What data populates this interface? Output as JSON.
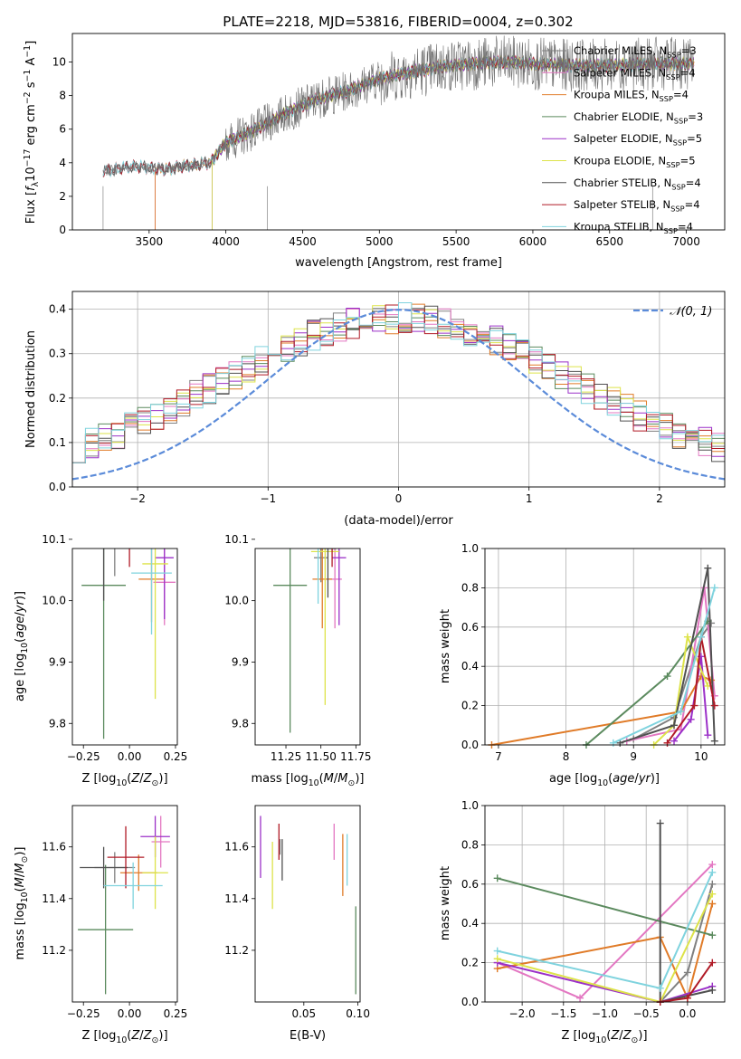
{
  "figure": {
    "title": "PLATE=2218, MJD=53816, FIBERID=0004, z=0.302"
  },
  "model_colors": {
    "Chabrier MILES": "#808080",
    "Salpeter MILES": "#e377c2",
    "Kroupa MILES": "#e07b28",
    "Chabrier ELODIE": "#5b8a5e",
    "Salpeter ELODIE": "#9b30c8",
    "Kroupa ELODIE": "#dde34a",
    "Chabrier STELIB": "#505050",
    "Salpeter STELIB": "#b01a26",
    "Kroupa STELIB": "#7fd3de"
  },
  "chart_data": [
    {
      "id": "spectrum",
      "type": "line",
      "title": "PLATE=2218, MJD=53816, FIBERID=0004, z=0.302",
      "xlabel": "wavelength [Angstrom, rest frame]",
      "ylabel": "Flux [f_λ 10^-17 erg cm^-2 s^-1 A^-1]",
      "xlim": [
        3000,
        7250
      ],
      "ylim": [
        0,
        11.7
      ],
      "xticks": [
        3500,
        4000,
        4500,
        5000,
        5500,
        6000,
        6500,
        7000
      ],
      "yticks": [
        0,
        2,
        4,
        6,
        8,
        10
      ],
      "grid": false,
      "legend_position": "right",
      "data_range": [
        3200,
        7050
      ],
      "continuum_knots": [
        [
          3200,
          3.5
        ],
        [
          3400,
          3.8
        ],
        [
          3600,
          3.6
        ],
        [
          3800,
          3.9
        ],
        [
          3900,
          4.0
        ],
        [
          4000,
          5.2
        ],
        [
          4200,
          6.0
        ],
        [
          4400,
          7.0
        ],
        [
          4600,
          7.8
        ],
        [
          4800,
          8.3
        ],
        [
          5000,
          9.0
        ],
        [
          5200,
          9.4
        ],
        [
          5400,
          9.7
        ],
        [
          5600,
          9.9
        ],
        [
          5800,
          10.0
        ],
        [
          6000,
          9.9
        ],
        [
          6200,
          9.8
        ],
        [
          6500,
          9.8
        ],
        [
          6800,
          9.9
        ],
        [
          7050,
          9.9
        ]
      ],
      "series": [
        {
          "name": "Chabrier MILES, N_SSP=3",
          "start": 3540
        },
        {
          "name": "Salpeter MILES, N_SSP=4",
          "start": 3540
        },
        {
          "name": "Kroupa MILES, N_SSP=4",
          "start": 3540
        },
        {
          "name": "Chabrier ELODIE, N_SSP=3",
          "start": 3910
        },
        {
          "name": "Salpeter ELODIE, N_SSP=5",
          "start": 3910
        },
        {
          "name": "Kroupa ELODIE, N_SSP=5",
          "start": 3910
        },
        {
          "name": "Chabrier STELIB, N_SSP=4",
          "start": 3200
        },
        {
          "name": "Salpeter STELIB, N_SSP=4",
          "start": 3200
        },
        {
          "name": "Kroupa STELIB, N_SSP=4",
          "start": 3200
        }
      ]
    },
    {
      "id": "residuals",
      "type": "line",
      "xlabel": "(data-model)/error",
      "ylabel": "Normed distribution",
      "xlim": [
        -2.5,
        2.5
      ],
      "ylim": [
        0,
        0.44
      ],
      "xticks": [
        -2,
        -1,
        0,
        1,
        2
      ],
      "yticks": [
        0.0,
        0.1,
        0.2,
        0.3,
        0.4
      ],
      "grid": true,
      "legend_position": "top-right",
      "reference_label": "𝒩(0, 1)",
      "bin_width": 0.1
    },
    {
      "id": "age_vs_Z",
      "type": "scatter",
      "xlabel": "Z [log10(Z/Z⊙)]",
      "ylabel": "age  [log10(age/yr)]",
      "xlim": [
        -0.31,
        0.26
      ],
      "ylim": [
        9.765,
        10.085
      ],
      "xticks": [
        -0.25,
        0.0,
        0.25
      ],
      "yticks": [
        9.8,
        9.9,
        10.0,
        10.1
      ],
      "points": [
        {
          "model": "Chabrier MILES",
          "x": -0.08,
          "y": 10.09,
          "xerr": 0.11,
          "yerr": 0.05
        },
        {
          "model": "Salpeter MILES",
          "x": 0.19,
          "y": 10.03,
          "xerr": 0.06,
          "yerr": 0.07
        },
        {
          "model": "Kroupa MILES",
          "x": 0.12,
          "y": 10.035,
          "xerr": 0.07,
          "yerr": 0.07
        },
        {
          "model": "Chabrier ELODIE",
          "x": -0.14,
          "y": 10.025,
          "xerr": 0.12,
          "yerr": 0.25
        },
        {
          "model": "Salpeter ELODIE",
          "x": 0.19,
          "y": 10.07,
          "xerr": 0.05,
          "yerr": 0.1
        },
        {
          "model": "Kroupa ELODIE",
          "x": 0.14,
          "y": 10.06,
          "xerr": 0.07,
          "yerr": 0.22
        },
        {
          "model": "Chabrier STELIB",
          "x": -0.14,
          "y": 10.09,
          "xerr": 0.11,
          "yerr": 0.09
        },
        {
          "model": "Salpeter STELIB",
          "x": 0.0,
          "y": 10.095,
          "xerr": 0.12,
          "yerr": 0.04
        },
        {
          "model": "Kroupa STELIB",
          "x": 0.12,
          "y": 10.045,
          "xerr": 0.11,
          "yerr": 0.1
        }
      ]
    },
    {
      "id": "age_vs_mass",
      "type": "scatter",
      "xlabel": "mass [log10(M/M⊙)]",
      "ylabel": "",
      "xlim": [
        11.03,
        11.78
      ],
      "ylim": [
        9.765,
        10.085
      ],
      "xticks": [
        11.25,
        11.5,
        11.75
      ],
      "yticks": [
        9.8,
        9.9,
        10.0,
        10.1
      ],
      "points": [
        {
          "model": "Chabrier MILES",
          "x": 11.5,
          "y": 10.07,
          "xerr": 0.05,
          "yerr": 0.04
        },
        {
          "model": "Salpeter MILES",
          "x": 11.6,
          "y": 10.035,
          "xerr": 0.05,
          "yerr": 0.08
        },
        {
          "model": "Kroupa MILES",
          "x": 11.51,
          "y": 10.035,
          "xerr": 0.07,
          "yerr": 0.08
        },
        {
          "model": "Chabrier ELODIE",
          "x": 11.28,
          "y": 10.025,
          "xerr": 0.12,
          "yerr": 0.24
        },
        {
          "model": "Salpeter ELODIE",
          "x": 11.63,
          "y": 10.07,
          "xerr": 0.05,
          "yerr": 0.11
        },
        {
          "model": "Kroupa ELODIE",
          "x": 11.53,
          "y": 10.08,
          "xerr": 0.1,
          "yerr": 0.25
        },
        {
          "model": "Chabrier STELIB",
          "x": 11.55,
          "y": 10.085,
          "xerr": 0.06,
          "yerr": 0.08
        },
        {
          "model": "Salpeter STELIB",
          "x": 11.58,
          "y": 10.095,
          "xerr": 0.1,
          "yerr": 0.04
        },
        {
          "model": "Kroupa STELIB",
          "x": 11.48,
          "y": 10.095,
          "xerr": 0.05,
          "yerr": 0.1
        }
      ]
    },
    {
      "id": "mass_weight_vs_age",
      "type": "line",
      "xlabel": "age  [log10(age/yr)]",
      "ylabel": "mass weight",
      "xlim": [
        6.8,
        10.35
      ],
      "ylim": [
        0,
        1.0
      ],
      "xticks": [
        7,
        8,
        9,
        10
      ],
      "yticks": [
        0.0,
        0.2,
        0.4,
        0.6,
        0.8,
        1.0
      ],
      "grid": true,
      "series": [
        {
          "model": "Chabrier MILES",
          "points": [
            [
              9.0,
              0.03
            ],
            [
              9.6,
              0.14
            ],
            [
              10.0,
              0.55
            ],
            [
              10.15,
              0.62
            ]
          ]
        },
        {
          "model": "Salpeter MILES",
          "points": [
            [
              8.9,
              0.02
            ],
            [
              9.7,
              0.08
            ],
            [
              10.05,
              0.8
            ],
            [
              10.2,
              0.25
            ]
          ]
        },
        {
          "model": "Kroupa MILES",
          "points": [
            [
              6.9,
              0.0
            ],
            [
              9.7,
              0.17
            ],
            [
              10.0,
              0.35
            ],
            [
              10.15,
              0.33
            ]
          ]
        },
        {
          "model": "Chabrier ELODIE",
          "points": [
            [
              8.3,
              0.0
            ],
            [
              9.5,
              0.35
            ],
            [
              10.1,
              0.63
            ]
          ]
        },
        {
          "model": "Salpeter ELODIE",
          "points": [
            [
              9.6,
              0.02
            ],
            [
              9.85,
              0.13
            ],
            [
              10.0,
              0.45
            ],
            [
              10.1,
              0.05
            ]
          ]
        },
        {
          "model": "Kroupa ELODIE",
          "points": [
            [
              9.3,
              0.0
            ],
            [
              9.6,
              0.1
            ],
            [
              9.8,
              0.55
            ],
            [
              10.1,
              0.3
            ]
          ]
        },
        {
          "model": "Chabrier STELIB",
          "points": [
            [
              8.8,
              0.01
            ],
            [
              9.6,
              0.1
            ],
            [
              10.1,
              0.9
            ],
            [
              10.2,
              0.02
            ]
          ]
        },
        {
          "model": "Salpeter STELIB",
          "points": [
            [
              9.5,
              0.01
            ],
            [
              9.9,
              0.2
            ],
            [
              10.0,
              0.55
            ],
            [
              10.2,
              0.2
            ]
          ]
        },
        {
          "model": "Kroupa STELIB",
          "points": [
            [
              8.7,
              0.01
            ],
            [
              9.7,
              0.17
            ],
            [
              10.0,
              0.55
            ],
            [
              10.2,
              0.8
            ]
          ]
        }
      ]
    },
    {
      "id": "mass_vs_Z",
      "type": "scatter",
      "xlabel": "Z [log10(Z/Z⊙)]",
      "ylabel": "mass [log10(M/M⊙)]",
      "xlim": [
        -0.31,
        0.26
      ],
      "ylim": [
        11.0,
        11.76
      ],
      "xticks": [
        -0.25,
        0.0,
        0.25
      ],
      "yticks": [
        11.2,
        11.4,
        11.6
      ],
      "points": [
        {
          "model": "Chabrier MILES",
          "x": -0.08,
          "y": 11.52,
          "xerr": 0.11,
          "yerr": 0.06
        },
        {
          "model": "Salpeter MILES",
          "x": 0.17,
          "y": 11.62,
          "xerr": 0.05,
          "yerr": 0.1
        },
        {
          "model": "Kroupa MILES",
          "x": 0.05,
          "y": 11.5,
          "xerr": 0.1,
          "yerr": 0.07
        },
        {
          "model": "Chabrier ELODIE",
          "x": -0.13,
          "y": 11.28,
          "xerr": 0.15,
          "yerr": 0.25
        },
        {
          "model": "Salpeter ELODIE",
          "x": 0.14,
          "y": 11.64,
          "xerr": 0.08,
          "yerr": 0.08
        },
        {
          "model": "Kroupa ELODIE",
          "x": 0.14,
          "y": 11.5,
          "xerr": 0.07,
          "yerr": 0.14
        },
        {
          "model": "Chabrier STELIB",
          "x": -0.14,
          "y": 11.52,
          "xerr": 0.13,
          "yerr": 0.08
        },
        {
          "model": "Salpeter STELIB",
          "x": -0.02,
          "y": 11.56,
          "xerr": 0.1,
          "yerr": 0.12
        },
        {
          "model": "Kroupa STELIB",
          "x": 0.02,
          "y": 11.45,
          "xerr": 0.16,
          "yerr": 0.09
        }
      ]
    },
    {
      "id": "mass_vs_EBV",
      "type": "scatter",
      "xlabel": "E(B-V)",
      "ylabel": "",
      "xlim": [
        0.005,
        0.102
      ],
      "ylim": [
        11.0,
        11.76
      ],
      "xticks": [
        0.05,
        0.1
      ],
      "yticks": [
        11.2,
        11.4,
        11.6
      ],
      "points": [
        {
          "model": "Chabrier MILES",
          "x": 0.028,
          "y": 11.6,
          "yerr": 0.03
        },
        {
          "model": "Salpeter MILES",
          "x": 0.078,
          "y": 11.62,
          "yerr": 0.07
        },
        {
          "model": "Kroupa MILES",
          "x": 0.086,
          "y": 11.53,
          "yerr": 0.12
        },
        {
          "model": "Chabrier ELODIE",
          "x": 0.098,
          "y": 11.2,
          "yerr": 0.17
        },
        {
          "model": "Salpeter ELODIE",
          "x": 0.01,
          "y": 11.6,
          "yerr": 0.12
        },
        {
          "model": "Kroupa ELODIE",
          "x": 0.021,
          "y": 11.49,
          "yerr": 0.13
        },
        {
          "model": "Chabrier STELIB",
          "x": 0.03,
          "y": 11.55,
          "yerr": 0.08
        },
        {
          "model": "Salpeter STELIB",
          "x": 0.027,
          "y": 11.62,
          "yerr": 0.07
        },
        {
          "model": "Kroupa STELIB",
          "x": 0.09,
          "y": 11.55,
          "yerr": 0.1
        }
      ]
    },
    {
      "id": "mass_weight_vs_Z",
      "type": "line",
      "xlabel": "Z [log10(Z/Z⊙)]",
      "ylabel": "mass weight",
      "xlim": [
        -2.45,
        0.45
      ],
      "ylim": [
        0,
        1.0
      ],
      "xticks": [
        -2.0,
        -1.5,
        -1.0,
        -0.5,
        0.0
      ],
      "yticks": [
        0.0,
        0.2,
        0.4,
        0.6,
        0.8,
        1.0
      ],
      "grid": true,
      "series": [
        {
          "model": "Chabrier MILES",
          "points": [
            [
              -0.33,
              0.0
            ],
            [
              0.0,
              0.15
            ],
            [
              0.3,
              0.6
            ]
          ]
        },
        {
          "model": "Salpeter MILES",
          "points": [
            [
              -2.3,
              0.2
            ],
            [
              -1.3,
              0.02
            ],
            [
              0.3,
              0.7
            ]
          ]
        },
        {
          "model": "Kroupa MILES",
          "points": [
            [
              -2.3,
              0.17
            ],
            [
              -0.33,
              0.33
            ],
            [
              0.0,
              0.02
            ],
            [
              0.3,
              0.5
            ]
          ]
        },
        {
          "model": "Chabrier ELODIE",
          "points": [
            [
              -2.3,
              0.63
            ],
            [
              0.3,
              0.34
            ]
          ]
        },
        {
          "model": "Salpeter ELODIE",
          "points": [
            [
              -2.3,
              0.2
            ],
            [
              -0.33,
              0.0
            ],
            [
              0.3,
              0.08
            ]
          ]
        },
        {
          "model": "Kroupa ELODIE",
          "points": [
            [
              -2.3,
              0.22
            ],
            [
              -0.33,
              0.0
            ],
            [
              0.3,
              0.55
            ]
          ]
        },
        {
          "model": "Chabrier STELIB",
          "points": [
            [
              -0.33,
              0.91
            ],
            [
              -0.33,
              0.0
            ],
            [
              0.3,
              0.06
            ]
          ]
        },
        {
          "model": "Salpeter STELIB",
          "points": [
            [
              -0.33,
              0.0
            ],
            [
              0.0,
              0.02
            ],
            [
              0.3,
              0.2
            ]
          ]
        },
        {
          "model": "Kroupa STELIB",
          "points": [
            [
              -2.3,
              0.26
            ],
            [
              -0.33,
              0.07
            ],
            [
              0.3,
              0.66
            ]
          ]
        }
      ]
    }
  ]
}
